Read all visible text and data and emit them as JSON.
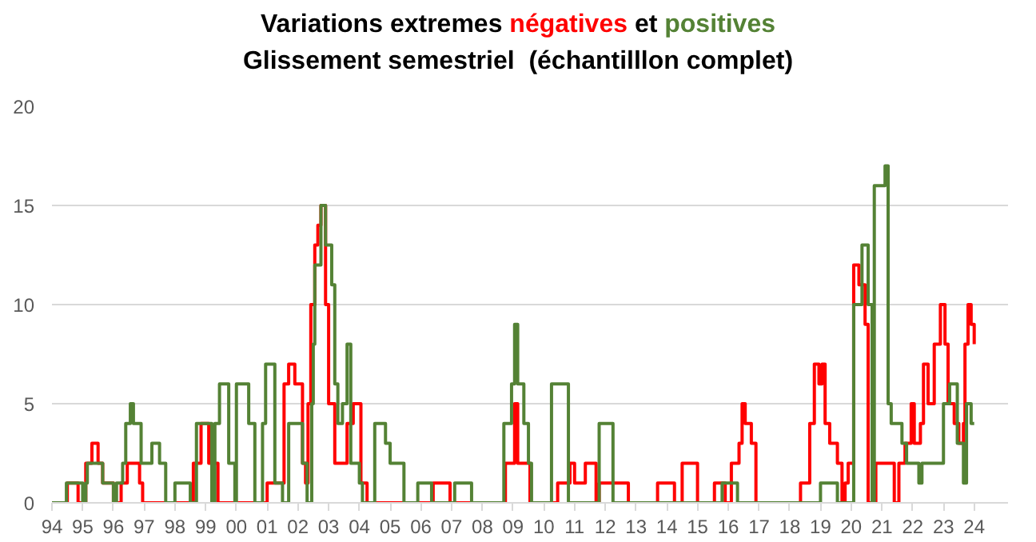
{
  "chart_data": {
    "type": "step",
    "title": "Variations extremes négatives et positives",
    "subtitle": "Glissement semestriel  (échantilllon complet)",
    "xlim": [
      1994,
      2025.1
    ],
    "ylim": [
      0,
      20
    ],
    "yticks": [
      0,
      5,
      10,
      15,
      20
    ],
    "xticks": [
      {
        "value": 1994,
        "label": "94"
      },
      {
        "value": 1995,
        "label": "95"
      },
      {
        "value": 1996,
        "label": "96"
      },
      {
        "value": 1997,
        "label": "97"
      },
      {
        "value": 1998,
        "label": "98"
      },
      {
        "value": 1999,
        "label": "99"
      },
      {
        "value": 2000,
        "label": "00"
      },
      {
        "value": 2001,
        "label": "01"
      },
      {
        "value": 2002,
        "label": "02"
      },
      {
        "value": 2003,
        "label": "03"
      },
      {
        "value": 2004,
        "label": "04"
      },
      {
        "value": 2005,
        "label": "05"
      },
      {
        "value": 2006,
        "label": "06"
      },
      {
        "value": 2007,
        "label": "07"
      },
      {
        "value": 2008,
        "label": "08"
      },
      {
        "value": 2009,
        "label": "09"
      },
      {
        "value": 2010,
        "label": "10"
      },
      {
        "value": 2011,
        "label": "11"
      },
      {
        "value": 2012,
        "label": "12"
      },
      {
        "value": 2013,
        "label": "13"
      },
      {
        "value": 2014,
        "label": "14"
      },
      {
        "value": 2015,
        "label": "15"
      },
      {
        "value": 2016,
        "label": "16"
      },
      {
        "value": 2017,
        "label": "17"
      },
      {
        "value": 2018,
        "label": "18"
      },
      {
        "value": 2019,
        "label": "19"
      },
      {
        "value": 2020,
        "label": "20"
      },
      {
        "value": 2021,
        "label": "21"
      },
      {
        "value": 2022,
        "label": "22"
      },
      {
        "value": 2023,
        "label": "23"
      },
      {
        "value": 2024,
        "label": "24"
      }
    ],
    "grid": "y",
    "series": [
      {
        "color": "#ff0000",
        "x": [
          1994.0,
          1994.5,
          1994.85,
          1995.1,
          1995.3,
          1995.5,
          1995.65,
          1996.0,
          1996.25,
          1996.45,
          1996.85,
          1996.95,
          1998.6,
          1998.85,
          1999.1,
          1999.4,
          2001.0,
          2001.55,
          2001.7,
          2001.9,
          2002.15,
          2002.25,
          2002.33,
          2002.42,
          2002.55,
          2002.65,
          2002.75,
          2002.9,
          2003.0,
          2003.2,
          2003.6,
          2003.8,
          2004.05,
          2004.25,
          2006.4,
          2006.95,
          2008.75,
          2009.05,
          2009.15,
          2009.55,
          2010.45,
          2010.85,
          2011.0,
          2011.35,
          2011.7,
          2011.8,
          2012.75,
          2013.7,
          2014.25,
          2014.5,
          2015.0,
          2015.55,
          2015.9,
          2016.1,
          2016.35,
          2016.45,
          2016.55,
          2016.75,
          2016.9,
          2018.35,
          2018.65,
          2018.8,
          2018.95,
          2019.05,
          2019.15,
          2019.3,
          2019.55,
          2019.7,
          2019.8,
          2019.9,
          2020.08,
          2020.25,
          2020.45,
          2020.55,
          2020.8,
          2021.4,
          2021.55,
          2021.75,
          2021.95,
          2022.05,
          2022.25,
          2022.35,
          2022.5,
          2022.7,
          2022.9,
          2023.05,
          2023.15,
          2023.35,
          2023.5,
          2023.65,
          2023.7,
          2023.8,
          2023.9,
          2024.0
        ],
        "values": [
          0,
          1,
          0,
          2,
          3,
          2,
          1,
          0,
          1,
          2,
          1,
          0,
          2,
          4,
          2,
          0,
          1,
          6,
          7,
          6,
          2,
          1,
          5,
          10,
          13,
          14,
          15,
          10,
          5,
          2,
          4,
          5,
          1,
          0,
          1,
          0,
          2,
          5,
          2,
          0,
          1,
          2,
          1,
          2,
          0,
          1,
          0,
          1,
          0,
          2,
          0,
          1,
          0,
          2,
          3,
          5,
          4,
          3,
          0,
          1,
          4,
          7,
          6,
          7,
          4,
          3,
          2,
          0,
          1,
          2,
          12,
          11,
          9,
          0,
          2,
          0,
          2,
          3,
          5,
          3,
          4,
          7,
          5,
          8,
          10,
          8,
          5,
          4,
          3,
          4,
          8,
          10,
          9,
          8
        ]
      },
      {
        "color": "#548235",
        "x": [
          1994.0,
          1994.47,
          1995.0,
          1995.1,
          1995.15,
          1995.65,
          1996.0,
          1996.1,
          1996.3,
          1996.4,
          1996.55,
          1996.65,
          1996.9,
          1997.25,
          1997.5,
          1997.7,
          1998.0,
          1998.5,
          1998.7,
          1999.2,
          1999.3,
          1999.45,
          1999.75,
          1999.95,
          2000.0,
          2000.4,
          2000.6,
          2000.85,
          2000.95,
          2001.25,
          2001.5,
          2001.7,
          2002.15,
          2002.3,
          2002.45,
          2002.5,
          2002.55,
          2002.75,
          2002.9,
          2003.1,
          2003.2,
          2003.3,
          2003.45,
          2003.6,
          2003.72,
          2004.0,
          2004.1,
          2004.5,
          2004.85,
          2005.0,
          2005.45,
          2005.9,
          2006.35,
          2007.1,
          2007.65,
          2008.7,
          2008.95,
          2009.05,
          2009.15,
          2009.35,
          2009.5,
          2009.6,
          2010.25,
          2010.8,
          2011.8,
          2012.25,
          2015.8,
          2016.3,
          2019.0,
          2019.55,
          2020.08,
          2020.35,
          2020.55,
          2020.68,
          2020.75,
          2021.1,
          2021.2,
          2021.3,
          2021.65,
          2021.8,
          2022.2,
          2022.3,
          2023.0,
          2023.2,
          2023.45,
          2023.65,
          2023.75,
          2023.9,
          2024.0
        ],
        "values": [
          0,
          1,
          0,
          1,
          2,
          1,
          0,
          1,
          2,
          4,
          5,
          4,
          2,
          3,
          2,
          0,
          1,
          0,
          4,
          0,
          4,
          6,
          2,
          0,
          6,
          4,
          0,
          4,
          7,
          1,
          0,
          4,
          2,
          0,
          5,
          8,
          12,
          15,
          13,
          11,
          6,
          4,
          5,
          8,
          2,
          1,
          0,
          4,
          3,
          2,
          0,
          1,
          0,
          1,
          0,
          4,
          6,
          9,
          6,
          4,
          2,
          0,
          6,
          0,
          4,
          0,
          1,
          0,
          1,
          0,
          10,
          13,
          10,
          0,
          16,
          17,
          5,
          4,
          3,
          2,
          1,
          2,
          5,
          6,
          3,
          1,
          5,
          4,
          4
        ]
      }
    ]
  }
}
